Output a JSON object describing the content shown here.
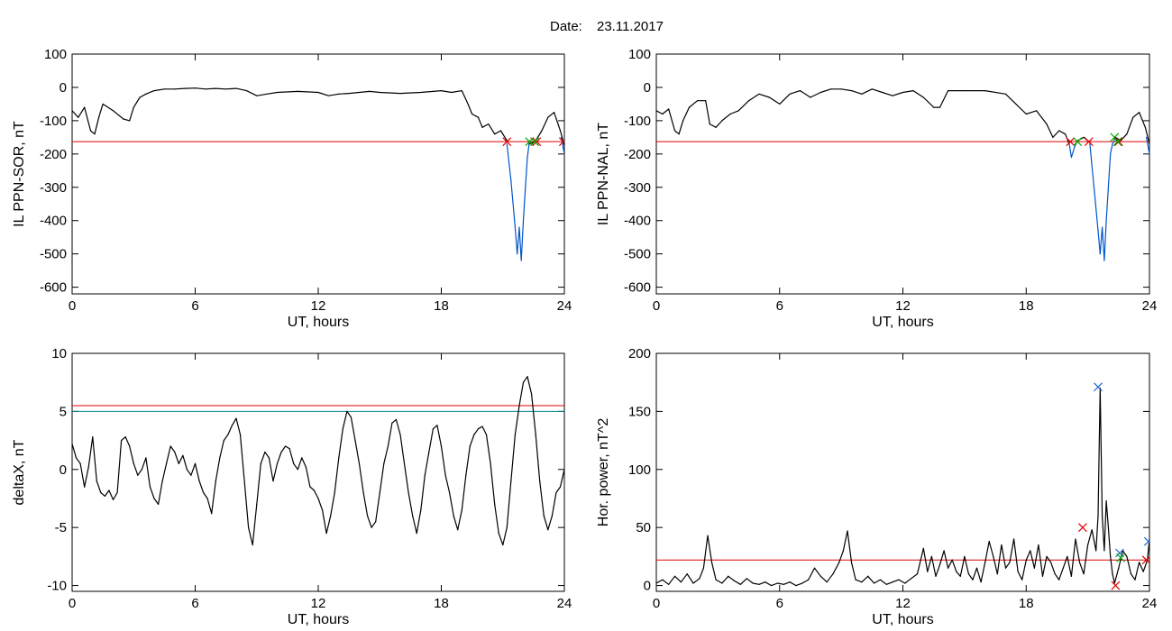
{
  "header": {
    "date_label": "Date:",
    "date_value": "23.11.2017"
  },
  "chart_data": [
    {
      "id": "sor",
      "type": "line",
      "xlabel": "UT, hours",
      "ylabel": "IL PPN-SOR, nT",
      "xlim": [
        0,
        24
      ],
      "ylim": [
        -620,
        100
      ],
      "xticks": [
        0,
        6,
        12,
        18,
        24
      ],
      "yticks": [
        100,
        0,
        -100,
        -200,
        -300,
        -400,
        -500,
        -600
      ],
      "grid": false,
      "series": [
        {
          "color": "#000000",
          "x": [
            0,
            0.3,
            0.6,
            0.9,
            1.1,
            1.3,
            1.5,
            2.0,
            2.5,
            2.8,
            3.0,
            3.3,
            3.6,
            4.0,
            4.5,
            5.0,
            5.5,
            6.0,
            6.5,
            7.0,
            7.5,
            8.0,
            8.5,
            9.0,
            9.5,
            10.0,
            11.0,
            12.0,
            12.5,
            13.0,
            13.5,
            14.0,
            14.5,
            15.0,
            16.0,
            17.0,
            18.0,
            18.5,
            19.0,
            19.3,
            19.5,
            19.8,
            20.0,
            20.3,
            20.6,
            20.9,
            21.2
          ],
          "values": [
            -70,
            -90,
            -60,
            -130,
            -140,
            -90,
            -50,
            -70,
            -95,
            -100,
            -60,
            -30,
            -20,
            -10,
            -5,
            -5,
            -3,
            -2,
            -5,
            -3,
            -5,
            -3,
            -10,
            -25,
            -20,
            -15,
            -12,
            -15,
            -25,
            -20,
            -18,
            -15,
            -12,
            -15,
            -18,
            -15,
            -10,
            -15,
            -10,
            -50,
            -80,
            -90,
            -120,
            -110,
            -140,
            -130,
            -160
          ]
        },
        {
          "color": "#0055cc",
          "x": [
            21.2,
            21.4,
            21.6,
            21.7,
            21.8,
            21.9,
            22.0,
            22.1,
            22.2,
            22.3
          ],
          "values": [
            -170,
            -280,
            -420,
            -500,
            -420,
            -520,
            -400,
            -300,
            -210,
            -160
          ]
        },
        {
          "color": "#000000",
          "x": [
            22.3,
            22.6,
            22.9,
            23.2,
            23.5,
            23.8,
            24.0
          ],
          "values": [
            -170,
            -160,
            -130,
            -90,
            -75,
            -130,
            -175
          ]
        },
        {
          "color": "#0055cc",
          "x": [
            23.85,
            24.0
          ],
          "values": [
            -150,
            -200
          ]
        }
      ],
      "hlines": [
        {
          "value": -163,
          "color": "#e00000"
        }
      ],
      "markers": [
        {
          "x": 21.2,
          "y": -163,
          "color": "#e00000"
        },
        {
          "x": 22.3,
          "y": -163,
          "color": "#00aa00"
        },
        {
          "x": 22.65,
          "y": -163,
          "color": "#e00000"
        },
        {
          "x": 22.55,
          "y": -163,
          "color": "#00aa00"
        },
        {
          "x": 23.95,
          "y": -163,
          "color": "#e00000"
        }
      ]
    },
    {
      "id": "nal",
      "type": "line",
      "xlabel": "UT, hours",
      "ylabel": "IL PPN-NAL, nT",
      "xlim": [
        0,
        24
      ],
      "ylim": [
        -620,
        100
      ],
      "xticks": [
        0,
        6,
        12,
        18,
        24
      ],
      "yticks": [
        100,
        0,
        -100,
        -200,
        -300,
        -400,
        -500,
        -600
      ],
      "grid": false,
      "series": [
        {
          "color": "#000000",
          "x": [
            0,
            0.3,
            0.6,
            0.9,
            1.1,
            1.3,
            1.6,
            2.0,
            2.4,
            2.6,
            2.9,
            3.2,
            3.6,
            4.0,
            4.5,
            5.0,
            5.5,
            6.0,
            6.5,
            7.0,
            7.5,
            8.0,
            8.5,
            9.0,
            9.5,
            10.0,
            10.5,
            11.0,
            11.5,
            12.0,
            12.5,
            13.0,
            13.5,
            13.8,
            14.2,
            15.0,
            16.0,
            17.0,
            17.5,
            18.0,
            18.5,
            19.0,
            19.3,
            19.6,
            19.9,
            20.1
          ],
          "values": [
            -70,
            -80,
            -65,
            -130,
            -140,
            -100,
            -60,
            -40,
            -40,
            -110,
            -120,
            -100,
            -80,
            -70,
            -40,
            -20,
            -30,
            -50,
            -20,
            -10,
            -30,
            -15,
            -5,
            -5,
            -10,
            -20,
            -5,
            -15,
            -25,
            -15,
            -10,
            -30,
            -60,
            -60,
            -10,
            -10,
            -10,
            -20,
            -50,
            -80,
            -70,
            -110,
            -150,
            -130,
            -140,
            -170
          ]
        },
        {
          "color": "#0055cc",
          "x": [
            20.1,
            20.2,
            20.35,
            20.5
          ],
          "values": [
            -170,
            -210,
            -180,
            -160
          ]
        },
        {
          "color": "#000000",
          "x": [
            20.5,
            20.8,
            21.1
          ],
          "values": [
            -160,
            -150,
            -165
          ]
        },
        {
          "color": "#0055cc",
          "x": [
            21.1,
            21.3,
            21.5,
            21.6,
            21.7,
            21.8,
            21.9,
            22.0,
            22.1,
            22.2,
            22.35
          ],
          "values": [
            -170,
            -300,
            -430,
            -500,
            -420,
            -520,
            -400,
            -300,
            -200,
            -170,
            -150
          ]
        },
        {
          "color": "#000000",
          "x": [
            22.35,
            22.6,
            22.9,
            23.2,
            23.5,
            23.8,
            24.0
          ],
          "values": [
            -150,
            -160,
            -140,
            -90,
            -75,
            -120,
            -170
          ]
        },
        {
          "color": "#0055cc",
          "x": [
            23.85,
            24.0
          ],
          "values": [
            -150,
            -200
          ]
        }
      ],
      "hlines": [
        {
          "value": -163,
          "color": "#e00000"
        }
      ],
      "markers": [
        {
          "x": 20.15,
          "y": -163,
          "color": "#e00000"
        },
        {
          "x": 20.5,
          "y": -163,
          "color": "#00aa00"
        },
        {
          "x": 21.05,
          "y": -163,
          "color": "#e00000"
        },
        {
          "x": 22.3,
          "y": -150,
          "color": "#00aa00"
        },
        {
          "x": 22.5,
          "y": -163,
          "color": "#e00000"
        },
        {
          "x": 22.45,
          "y": -163,
          "color": "#00aa00"
        }
      ]
    },
    {
      "id": "deltax",
      "type": "line",
      "xlabel": "UT, hours",
      "ylabel": "deltaX, nT",
      "xlim": [
        0,
        24
      ],
      "ylim": [
        -10.5,
        10
      ],
      "xticks": [
        0,
        6,
        12,
        18,
        24
      ],
      "yticks": [
        10,
        5,
        0,
        -5,
        -10
      ],
      "grid": false,
      "series": [
        {
          "color": "#000000",
          "x": [
            0,
            0.2,
            0.4,
            0.6,
            0.8,
            1.0,
            1.2,
            1.4,
            1.6,
            1.8,
            2.0,
            2.2,
            2.4,
            2.6,
            2.8,
            3.0,
            3.2,
            3.4,
            3.6,
            3.8,
            4.0,
            4.2,
            4.4,
            4.6,
            4.8,
            5.0,
            5.2,
            5.4,
            5.6,
            5.8,
            6.0,
            6.2,
            6.4,
            6.6,
            6.8,
            7.0,
            7.2,
            7.4,
            7.6,
            7.8,
            8.0,
            8.2,
            8.4,
            8.6,
            8.8,
            9.0,
            9.2,
            9.4,
            9.6,
            9.8,
            10.0,
            10.2,
            10.4,
            10.6,
            10.8,
            11.0,
            11.2,
            11.4,
            11.6,
            11.8,
            12.0,
            12.2,
            12.4,
            12.6,
            12.8,
            13.0,
            13.2,
            13.4,
            13.6,
            13.8,
            14.0,
            14.2,
            14.4,
            14.6,
            14.8,
            15.0,
            15.2,
            15.4,
            15.6,
            15.8,
            16.0,
            16.2,
            16.4,
            16.6,
            16.8,
            17.0,
            17.2,
            17.4,
            17.6,
            17.8,
            18.0,
            18.2,
            18.4,
            18.6,
            18.8,
            19.0,
            19.2,
            19.4,
            19.6,
            19.8,
            20.0,
            20.2,
            20.4,
            20.6,
            20.8,
            21.0,
            21.2,
            21.4,
            21.6,
            21.8,
            22.0,
            22.2,
            22.4,
            22.6,
            22.8,
            23.0,
            23.2,
            23.4,
            23.6,
            23.8,
            24.0
          ],
          "values": [
            2.2,
            1.0,
            0.5,
            -1.5,
            0.2,
            2.8,
            -1.0,
            -2.0,
            -2.3,
            -1.8,
            -2.6,
            -2.0,
            2.5,
            2.8,
            2.0,
            0.5,
            -0.5,
            0.0,
            1.0,
            -1.5,
            -2.5,
            -3.0,
            -1.0,
            0.5,
            2.0,
            1.5,
            0.5,
            1.2,
            0.0,
            -0.5,
            0.5,
            -1.0,
            -2.0,
            -2.5,
            -3.8,
            -1.0,
            1.0,
            2.5,
            3.0,
            3.8,
            4.4,
            3.0,
            -1.0,
            -5.0,
            -6.5,
            -3.0,
            0.5,
            1.5,
            1.0,
            -1.0,
            0.5,
            1.5,
            2.0,
            1.8,
            0.5,
            0.0,
            1.0,
            0.2,
            -1.5,
            -1.8,
            -2.5,
            -3.5,
            -5.5,
            -4.0,
            -2.0,
            1.0,
            3.5,
            5.0,
            4.5,
            2.5,
            0.5,
            -2.0,
            -4.0,
            -5.0,
            -4.5,
            -2.0,
            0.5,
            2.0,
            4.0,
            4.3,
            3.0,
            0.5,
            -2.0,
            -4.0,
            -5.5,
            -3.5,
            -0.5,
            1.5,
            3.5,
            3.8,
            2.0,
            -0.5,
            -2.0,
            -4.0,
            -5.2,
            -3.5,
            -0.5,
            2.0,
            3.0,
            3.5,
            3.7,
            3.0,
            0.5,
            -3.0,
            -5.5,
            -6.5,
            -5.0,
            -1.0,
            3.0,
            5.5,
            7.5,
            8.0,
            6.5,
            3.0,
            -1.0,
            -4.0,
            -5.2,
            -4.0,
            -2.0,
            -1.5,
            0.0
          ]
        }
      ],
      "hlines": [
        {
          "value": 5.5,
          "color": "#e00000"
        },
        {
          "value": 5.0,
          "color": "#0b8a8a"
        }
      ],
      "markers": []
    },
    {
      "id": "power",
      "type": "line",
      "xlabel": "UT, hours",
      "ylabel": "Hor. power, nT^2",
      "xlim": [
        0,
        24
      ],
      "ylim": [
        -5,
        200
      ],
      "xticks": [
        0,
        6,
        12,
        18,
        24
      ],
      "yticks": [
        200,
        150,
        100,
        50,
        0
      ],
      "grid": false,
      "series": [
        {
          "color": "#000000",
          "x": [
            0,
            0.3,
            0.6,
            0.9,
            1.2,
            1.5,
            1.8,
            2.1,
            2.3,
            2.5,
            2.7,
            2.9,
            3.2,
            3.5,
            3.8,
            4.1,
            4.4,
            4.7,
            5.0,
            5.3,
            5.6,
            5.9,
            6.2,
            6.5,
            6.8,
            7.1,
            7.4,
            7.7,
            8.0,
            8.3,
            8.6,
            8.9,
            9.1,
            9.3,
            9.5,
            9.7,
            10.0,
            10.3,
            10.6,
            10.9,
            11.2,
            11.5,
            11.8,
            12.1,
            12.4,
            12.7,
            13.0,
            13.2,
            13.4,
            13.6,
            13.8,
            14.0,
            14.2,
            14.4,
            14.6,
            14.8,
            15.0,
            15.2,
            15.4,
            15.6,
            15.8,
            16.0,
            16.2,
            16.4,
            16.6,
            16.8,
            17.0,
            17.2,
            17.4,
            17.6,
            17.8,
            18.0,
            18.2,
            18.4,
            18.6,
            18.8,
            19.0,
            19.2,
            19.4,
            19.6,
            19.8,
            20.0,
            20.2,
            20.4,
            20.6,
            20.8,
            21.0,
            21.2,
            21.4,
            21.5,
            21.6,
            21.7,
            21.8,
            21.9,
            22.0,
            22.1,
            22.2,
            22.3,
            22.5,
            22.7,
            22.9,
            23.1,
            23.3,
            23.5,
            23.7,
            23.9,
            24.0
          ],
          "values": [
            2,
            5,
            1,
            8,
            3,
            10,
            2,
            6,
            15,
            43,
            20,
            5,
            2,
            8,
            4,
            1,
            6,
            2,
            1,
            3,
            0,
            2,
            1,
            3,
            0,
            2,
            5,
            15,
            8,
            3,
            10,
            20,
            30,
            47,
            20,
            5,
            3,
            8,
            2,
            5,
            1,
            3,
            5,
            2,
            6,
            10,
            32,
            12,
            25,
            8,
            18,
            30,
            15,
            22,
            12,
            8,
            25,
            10,
            5,
            15,
            3,
            20,
            38,
            25,
            10,
            35,
            15,
            20,
            40,
            12,
            5,
            22,
            30,
            15,
            35,
            8,
            25,
            20,
            10,
            5,
            15,
            25,
            8,
            40,
            20,
            10,
            35,
            48,
            30,
            60,
            170,
            60,
            30,
            73,
            50,
            25,
            10,
            2,
            15,
            30,
            25,
            10,
            5,
            20,
            12,
            22,
            40
          ]
        }
      ],
      "hlines": [
        {
          "value": 22,
          "color": "#e00000"
        }
      ],
      "markers": [
        {
          "x": 21.5,
          "y": 171,
          "color": "#1a66cc"
        },
        {
          "x": 20.75,
          "y": 50,
          "color": "#e00000"
        },
        {
          "x": 22.55,
          "y": 28,
          "color": "#1a66cc"
        },
        {
          "x": 22.6,
          "y": 24,
          "color": "#00aa00"
        },
        {
          "x": 22.35,
          "y": 0,
          "color": "#e00000"
        },
        {
          "x": 23.85,
          "y": 22,
          "color": "#e00000"
        },
        {
          "x": 23.95,
          "y": 38,
          "color": "#1a66cc"
        }
      ]
    }
  ]
}
